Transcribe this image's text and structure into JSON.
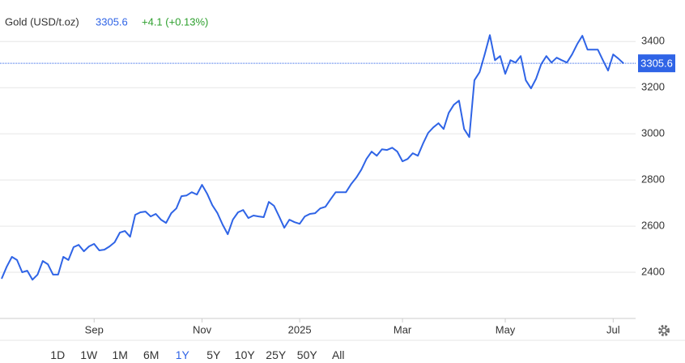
{
  "chart_data": {
    "type": "line",
    "title": "Gold (USD/t.oz)",
    "change": "+4.1 (+0.13%)",
    "color": "#2f64e6",
    "categories": [
      null,
      null,
      null,
      null,
      null,
      null,
      null,
      null,
      null,
      null,
      null,
      null,
      null,
      null,
      null,
      null,
      null,
      null,
      "Sep",
      null,
      null,
      null,
      null,
      null,
      null,
      null,
      null,
      null,
      null,
      null,
      null,
      null,
      null,
      null,
      null,
      null,
      null,
      null,
      null,
      "Nov",
      null,
      null,
      null,
      null,
      null,
      null,
      null,
      null,
      null,
      null,
      null,
      null,
      null,
      null,
      null,
      null,
      null,
      null,
      "2025",
      null,
      null,
      null,
      null,
      null,
      null,
      null,
      null,
      null,
      null,
      null,
      null,
      null,
      null,
      null,
      null,
      null,
      null,
      null,
      "Mar",
      null,
      null,
      null,
      null,
      null,
      null,
      null,
      null,
      null,
      null,
      null,
      null,
      null,
      null,
      null,
      null,
      null,
      null,
      null,
      "May",
      null,
      null,
      null,
      null,
      null,
      null,
      null,
      null,
      null,
      null,
      null,
      null,
      null,
      null,
      null,
      null,
      null,
      null,
      null,
      null,
      "Jul",
      null,
      null
    ],
    "values": [
      2372,
      2424,
      2467,
      2453,
      2400,
      2407,
      2368,
      2390,
      2449,
      2435,
      2390,
      2390,
      2467,
      2453,
      2509,
      2519,
      2491,
      2512,
      2523,
      2495,
      2498,
      2512,
      2530,
      2572,
      2579,
      2554,
      2649,
      2660,
      2663,
      2642,
      2653,
      2628,
      2614,
      2656,
      2677,
      2730,
      2733,
      2747,
      2737,
      2779,
      2740,
      2691,
      2656,
      2607,
      2565,
      2628,
      2660,
      2670,
      2635,
      2646,
      2642,
      2639,
      2705,
      2688,
      2642,
      2593,
      2628,
      2617,
      2610,
      2642,
      2653,
      2656,
      2677,
      2684,
      2716,
      2747,
      2747,
      2747,
      2782,
      2810,
      2845,
      2891,
      2923,
      2905,
      2933,
      2930,
      2940,
      2923,
      2881,
      2891,
      2916,
      2905,
      2958,
      3004,
      3028,
      3046,
      3021,
      3091,
      3126,
      3144,
      3021,
      2986,
      3232,
      3267,
      3344,
      3428,
      3319,
      3337,
      3260,
      3319,
      3309,
      3337,
      3232,
      3197,
      3239,
      3302,
      3337,
      3309,
      3330,
      3319,
      3309,
      3344,
      3389,
      3425,
      3365,
      3365,
      3365,
      3319,
      3274,
      3344,
      3326,
      3305.6
    ],
    "ylim": [
      2200,
      3580
    ],
    "yticks": [
      2400,
      2600,
      2800,
      3000,
      3200,
      3400
    ],
    "grid": true
  },
  "range_buttons": [
    "1D",
    "1W",
    "1M",
    "6M",
    "1Y",
    "5Y",
    "10Y",
    "25Y",
    "50Y",
    "All"
  ]
}
